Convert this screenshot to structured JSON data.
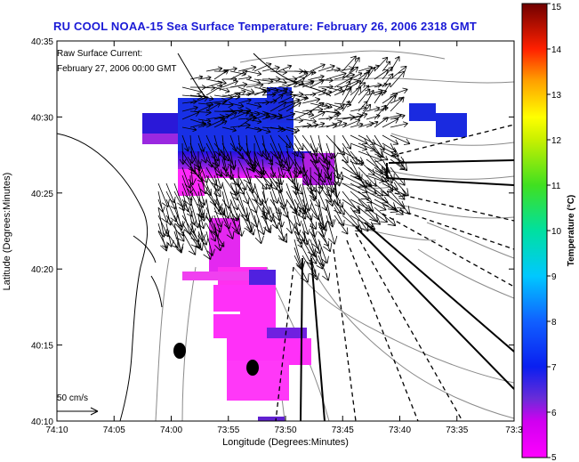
{
  "title": "RU COOL  NOAA-15  Sea Surface Temperature:  February 26, 2006 2318 GMT",
  "current_label_line1": "Raw Surface Current:",
  "current_label_line2": "February 27, 2006 00:00 GMT",
  "scale_arrow_label": "50 cm/s",
  "x_axis": {
    "label": "Longitude (Degrees:Minutes)",
    "ticks": [
      "74:10",
      "74:05",
      "74:00",
      "73:55",
      "73:50",
      "73:45",
      "73:40",
      "73:35",
      "73:3"
    ]
  },
  "y_axis": {
    "label": "Latitude (Degrees:Minutes)",
    "ticks": [
      "40:35",
      "40:30",
      "40:25",
      "40:20",
      "40:15",
      "40:10"
    ]
  },
  "colorbar": {
    "label": "Temperature (°C)",
    "ticks": [
      "15",
      "14",
      "13",
      "12",
      "11",
      "10",
      "9",
      "8",
      "7",
      "6",
      "5"
    ],
    "range": [
      5,
      15
    ]
  },
  "colors": {
    "title": "#1a1ad6",
    "annotation": "#1a1ad6"
  }
}
